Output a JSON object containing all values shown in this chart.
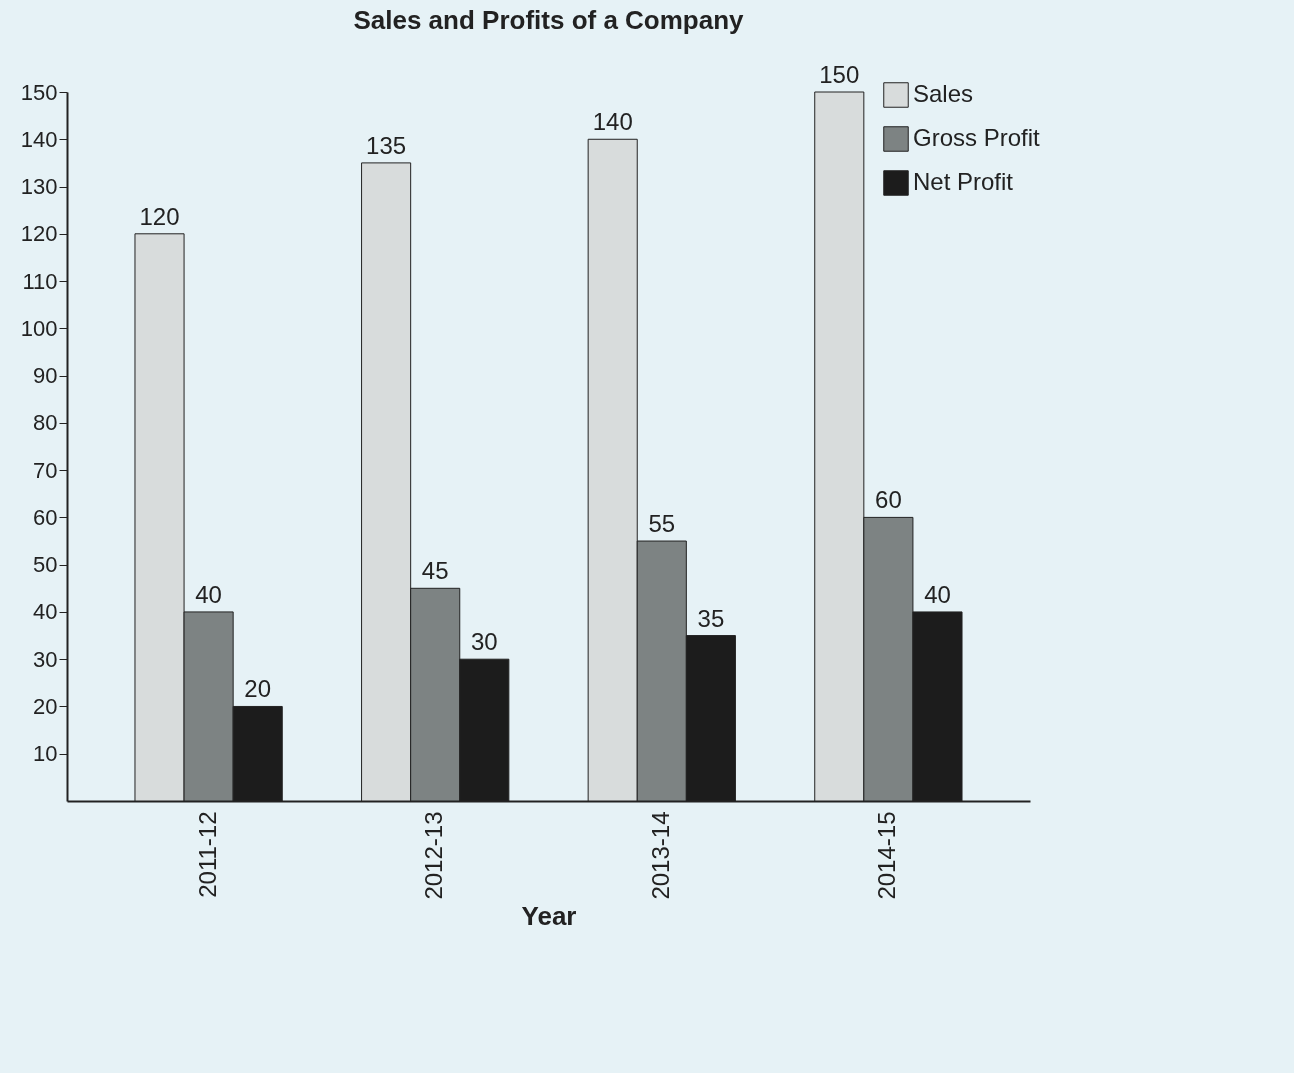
{
  "chart_data": {
    "type": "bar",
    "title": "Sales and Profits of a Company",
    "xlabel": "Year",
    "categories": [
      "2011-12",
      "2012-13",
      "2013-14",
      "2014-15"
    ],
    "series": [
      {
        "name": "Sales",
        "color": "#d8dcdc",
        "values": [
          120,
          135,
          140,
          150
        ]
      },
      {
        "name": "Gross Profit",
        "color": "#7d8383",
        "values": [
          40,
          45,
          55,
          60
        ]
      },
      {
        "name": "Net Profit",
        "color": "#1c1c1c",
        "values": [
          20,
          30,
          35,
          40
        ]
      }
    ],
    "ylim": [
      0,
      150
    ],
    "yticks": [
      10,
      20,
      30,
      40,
      50,
      60,
      70,
      80,
      90,
      100,
      110,
      120,
      130,
      140,
      150
    ],
    "data_labels": true,
    "grid": false,
    "legend": "top right"
  }
}
